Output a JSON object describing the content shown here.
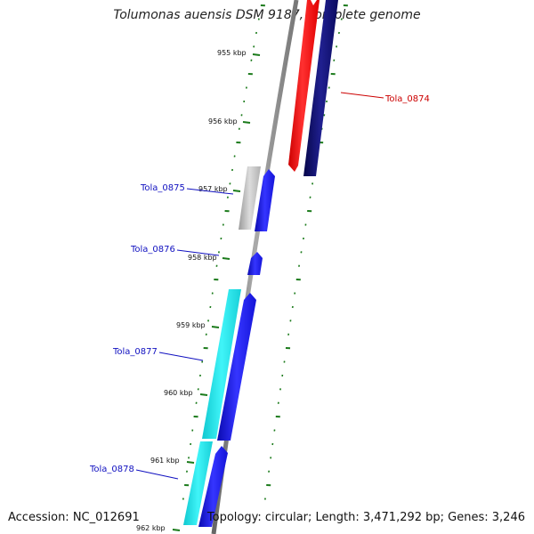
{
  "title": "Tolumonas auensis DSM 9187, complete genome",
  "footer": {
    "accession": "Accession: NC_012691",
    "topology": "Topology: circular; Length: 3,471,292 bp; Genes: 3,246"
  },
  "colors": {
    "backbone": "#808080",
    "tick": "#1a7a1a",
    "forward_cds": "#1a1aff",
    "forward_cds_dark": "#0b0bb0",
    "reverse_cds": "#ff1a1a",
    "dark_cds": "#0a0a6e",
    "rna": "#1ad8e0",
    "pseudo": "#b4b4b4",
    "label_blue": "#1010c0",
    "label_red": "#cc0000"
  },
  "ticks": [
    {
      "label": "955 kbp"
    },
    {
      "label": "956 kbp"
    },
    {
      "label": "957 kbp"
    },
    {
      "label": "958 kbp"
    },
    {
      "label": "959 kbp"
    },
    {
      "label": "960 kbp"
    },
    {
      "label": "961 kbp"
    },
    {
      "label": "962 kbp"
    }
  ],
  "genes": [
    {
      "name": "Tola_0874",
      "color": "red"
    },
    {
      "name": "Tola_0875",
      "color": "blue"
    },
    {
      "name": "Tola_0876",
      "color": "blue"
    },
    {
      "name": "Tola_0877",
      "color": "blue"
    },
    {
      "name": "Tola_0878",
      "color": "blue"
    }
  ]
}
